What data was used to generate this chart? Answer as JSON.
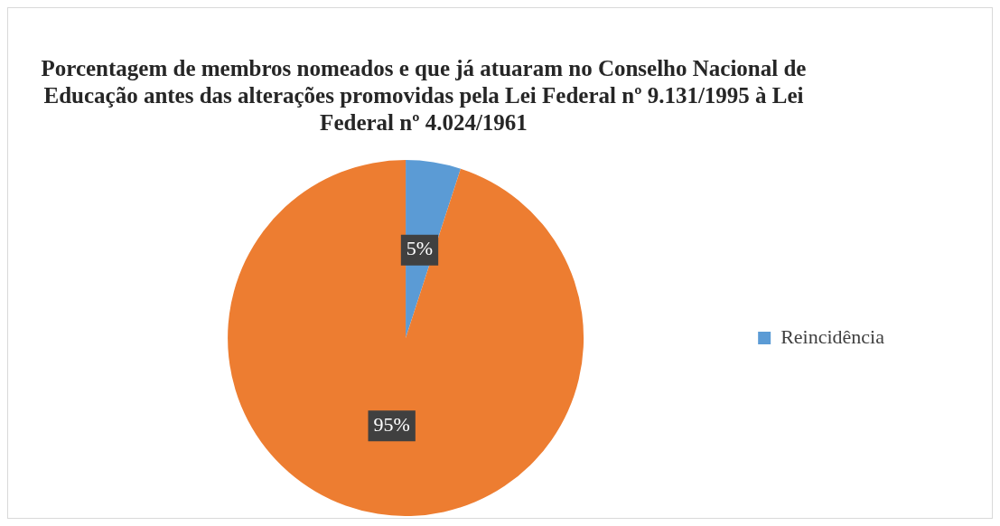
{
  "chart_data": {
    "type": "pie",
    "title": "Porcentagem de membros nomeados e que já atuaram no Conselho Nacional de Educação antes das alterações promovidas pela Lei Federal nº 9.131/1995 à Lei Federal nº 4.024/1961",
    "categories": [
      "Reincidência",
      null
    ],
    "values": [
      5,
      95
    ],
    "colors": [
      "#5b9bd5",
      "#ed7d31"
    ],
    "value_labels": [
      "5%",
      "95%"
    ],
    "legend": "right"
  }
}
